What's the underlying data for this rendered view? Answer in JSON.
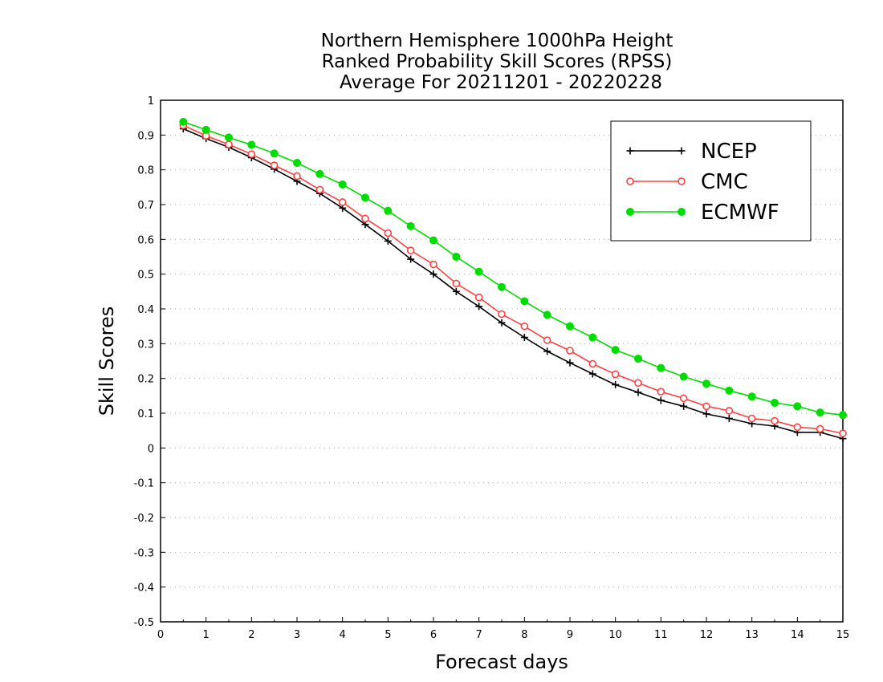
{
  "chart_data": {
    "type": "line",
    "title": [
      "Northern Hemisphere 1000hPa Height",
      "Ranked Probability Skill Scores (RPSS)",
      "Average For 20211201 - 20220228"
    ],
    "xlabel": "Forecast days",
    "ylabel": "Skill Scores",
    "xlim": [
      0,
      15
    ],
    "ylim": [
      -0.5,
      1
    ],
    "xticks": [
      "0",
      "1",
      "2",
      "3",
      "4",
      "5",
      "6",
      "7",
      "8",
      "9",
      "10",
      "11",
      "12",
      "13",
      "14",
      "15"
    ],
    "yticks": [
      "1",
      "0.9",
      "0.8",
      "0.7",
      "0.6",
      "0.5",
      "0.4",
      "0.3",
      "0.2",
      "0.1",
      "0",
      "-0.1",
      "-0.2",
      "-0.3",
      "-0.4",
      "-0.5"
    ],
    "grid": true,
    "legend_position": "top-right",
    "x": [
      0.5,
      1,
      1.5,
      2,
      2.5,
      3,
      3.5,
      4,
      4.5,
      5,
      5.5,
      6,
      6.5,
      7,
      7.5,
      8,
      8.5,
      9,
      9.5,
      10,
      10.5,
      11,
      11.5,
      12,
      12.5,
      13,
      13.5,
      14,
      14.5,
      15
    ],
    "series": [
      {
        "name": "NCEP",
        "color": "#000000",
        "marker": "plus",
        "values": [
          0.918,
          0.89,
          0.865,
          0.835,
          0.802,
          0.767,
          0.732,
          0.69,
          0.643,
          0.595,
          0.543,
          0.5,
          0.45,
          0.407,
          0.36,
          0.318,
          0.278,
          0.245,
          0.213,
          0.182,
          0.16,
          0.137,
          0.12,
          0.098,
          0.085,
          0.07,
          0.063,
          0.045,
          0.045,
          0.027
        ]
      },
      {
        "name": "CMC",
        "color": "#ff4040",
        "marker": "open-circle",
        "values": [
          0.928,
          0.898,
          0.873,
          0.845,
          0.813,
          0.782,
          0.743,
          0.707,
          0.66,
          0.618,
          0.568,
          0.528,
          0.473,
          0.433,
          0.385,
          0.35,
          0.31,
          0.28,
          0.242,
          0.212,
          0.187,
          0.162,
          0.143,
          0.12,
          0.107,
          0.085,
          0.078,
          0.06,
          0.055,
          0.042
        ]
      },
      {
        "name": "ECMWF",
        "color": "#00dd00",
        "marker": "filled-circle",
        "values": [
          0.938,
          0.915,
          0.893,
          0.872,
          0.847,
          0.82,
          0.788,
          0.758,
          0.72,
          0.682,
          0.638,
          0.597,
          0.55,
          0.507,
          0.463,
          0.422,
          0.383,
          0.35,
          0.318,
          0.282,
          0.257,
          0.23,
          0.205,
          0.185,
          0.165,
          0.148,
          0.13,
          0.12,
          0.102,
          0.095
        ]
      }
    ]
  }
}
